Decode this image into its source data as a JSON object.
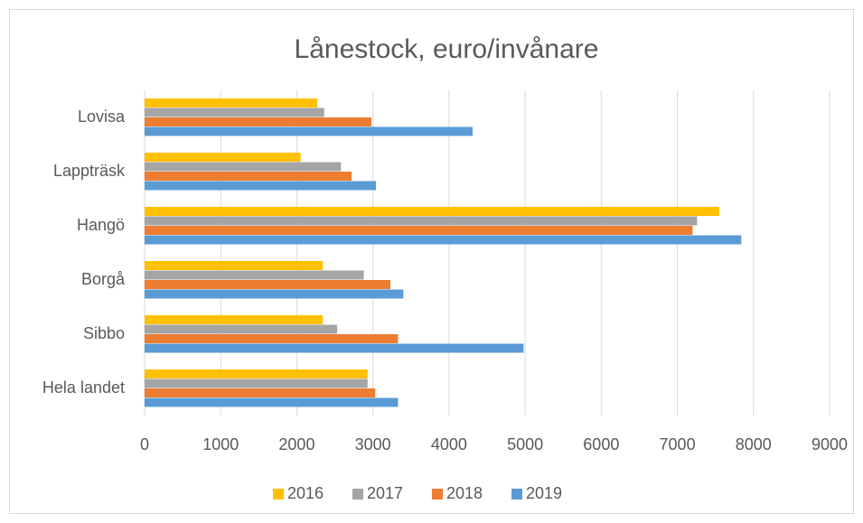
{
  "chart_data": {
    "type": "hbar",
    "title": "Lånestock, euro/invånare",
    "categories": [
      "Lovisa",
      "Lappträsk",
      "Hangö",
      "Borgå",
      "Sibbo",
      "Hela landet"
    ],
    "series": [
      {
        "name": "2016",
        "color": "#FFC000",
        "values": [
          2270,
          2050,
          7550,
          2340,
          2340,
          2930
        ]
      },
      {
        "name": "2017",
        "color": "#A5A5A5",
        "values": [
          2360,
          2580,
          7260,
          2880,
          2530,
          2930
        ]
      },
      {
        "name": "2018",
        "color": "#ED7D31",
        "values": [
          2980,
          2720,
          7200,
          3230,
          3330,
          3030
        ]
      },
      {
        "name": "2019",
        "color": "#5B9BD5",
        "values": [
          4310,
          3040,
          7840,
          3400,
          4980,
          3330
        ]
      }
    ],
    "xlim": [
      0,
      9000
    ],
    "xticks": [
      0,
      1000,
      2000,
      3000,
      4000,
      5000,
      6000,
      7000,
      8000,
      9000
    ],
    "grid": true,
    "legend": "bottom"
  }
}
